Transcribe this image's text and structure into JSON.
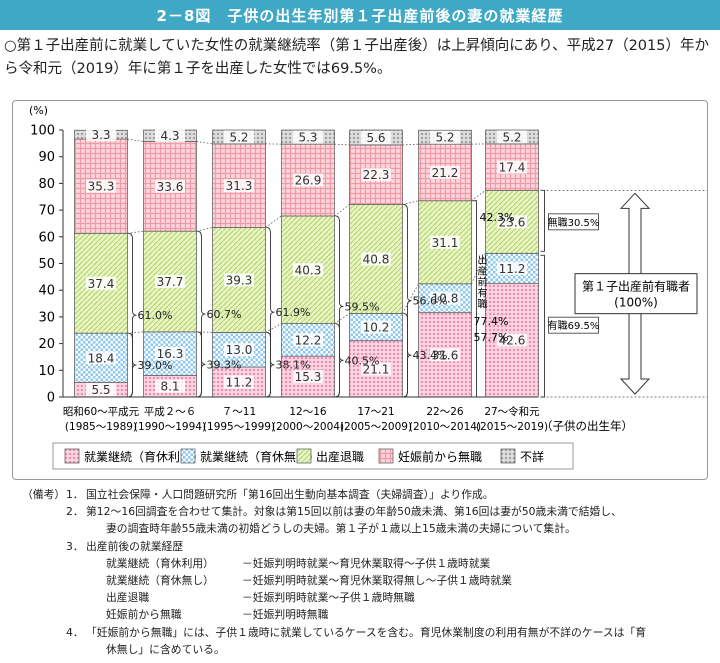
{
  "title": "2－8図　子供の出生年別第１子出産前後の妻の就業経歴",
  "summary": "○第１子出産前に就業していた女性の就業継続率（第１子出産後）は上昇傾向にあり、平成27（2015）年から令和元（2019）年に第１子を出産した女性では69.5%。",
  "chart_data": {
    "type": "bar",
    "stacked": true,
    "ylabel": "(%)",
    "ylim": [
      0,
      100
    ],
    "yticks": [
      0,
      10,
      20,
      30,
      40,
      50,
      60,
      70,
      80,
      90,
      100
    ],
    "xlabel": "（子供の出生年）",
    "categories": [
      {
        "line1": "昭和60～平成元",
        "line2": "(1985～1989)"
      },
      {
        "line1": "平成２～６",
        "line2": "(1990～1994)"
      },
      {
        "line1": "７～11",
        "line2": "(1995～1999)"
      },
      {
        "line1": "12～16",
        "line2": "(2000～2004)"
      },
      {
        "line1": "17～21",
        "line2": "(2005～2009)"
      },
      {
        "line1": "22～26",
        "line2": "(2010～2014)"
      },
      {
        "line1": "27～令和元",
        "line2": "(2015～2019)"
      }
    ],
    "series": [
      {
        "name": "就業継続（育休利用）",
        "color": "#f4a8c0",
        "values": [
          5.5,
          8.1,
          11.2,
          15.3,
          21.1,
          31.6,
          42.6
        ]
      },
      {
        "name": "就業継続（育休無し）",
        "color": "#a8d8f0",
        "values": [
          18.4,
          16.3,
          13.0,
          12.2,
          10.2,
          10.8,
          11.2
        ]
      },
      {
        "name": "出産退職",
        "color": "#d8eba8",
        "values": [
          37.4,
          37.7,
          39.3,
          40.3,
          40.8,
          31.1,
          23.6
        ]
      },
      {
        "name": "妊娠前から無職",
        "color": "#f4a8b0",
        "values": [
          35.3,
          33.6,
          31.3,
          26.9,
          22.3,
          21.2,
          17.4
        ]
      },
      {
        "name": "不詳",
        "color": "#c0c0c0",
        "values": [
          3.3,
          4.3,
          5.2,
          5.3,
          5.6,
          5.2,
          5.2
        ]
      }
    ],
    "annotations": {
      "employment_rate": [
        "61.0%",
        "60.7%",
        "61.9%",
        "59.5%",
        "56.6%",
        "42.3%"
      ],
      "continuation_rate": [
        "39.0%",
        "39.3%",
        "38.1%",
        "40.5%",
        "43.4%",
        "57.7%"
      ],
      "special_label": "出産前有職",
      "special_value": "77.4%",
      "mushoku_box": "無職30.5%",
      "yushoku_box": "有職69.5%",
      "right_box_line1": "第１子出産前有職者",
      "right_box_line2": "(100%)"
    },
    "legend_position": "bottom"
  },
  "notes": {
    "label": "（備考）",
    "items": [
      {
        "num": "1．",
        "text": "国立社会保障・人口問題研究所「第16回出生動向基本調査（夫婦調査）」より作成。"
      },
      {
        "num": "2．",
        "text": "第12～16回調査を合わせて集計。対象は第15回以前は妻の年齢50歳未満、第16回は妻が50歳未満で結婚し、",
        "cont": "妻の調査時年齢55歳未満の初婚どうしの夫婦。第１子が１歳以上15歳未満の夫婦について集計。"
      },
      {
        "num": "3．",
        "text": "出産前後の就業経歴"
      },
      {
        "num": "4．",
        "text": "「妊娠前から無職」には、子供１歳時に就業しているケースを含む。育児休業制度の利用有無が不詳のケースは「育",
        "cont": "休無し」に含めている。"
      }
    ],
    "definitions": [
      {
        "k": "就業継続（育休利用）",
        "v": "－妊娠判明時就業～育児休業取得～子供１歳時就業"
      },
      {
        "k": "就業継続（育休無し）",
        "v": "－妊娠判明時就業～育児休業取得無し～子供１歳時就業"
      },
      {
        "k": "出産退職",
        "v": "－妊娠判明時就業～子供１歳時無職"
      },
      {
        "k": "妊娠前から無職",
        "v": "－妊娠判明時無職"
      }
    ]
  }
}
